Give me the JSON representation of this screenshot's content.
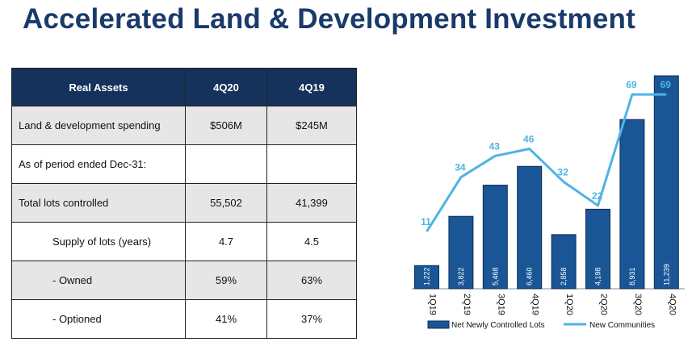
{
  "title": "Accelerated Land & Development Investment",
  "table": {
    "headers": [
      "Real Assets",
      "4Q20",
      "4Q19"
    ],
    "rows": [
      {
        "label": "Land & development spending",
        "q20": "$506M",
        "q19": "$245M",
        "indent": false,
        "shade": true
      },
      {
        "label": "As of period ended Dec-31:",
        "q20": "",
        "q19": "",
        "indent": false,
        "shade": false
      },
      {
        "label": "Total lots controlled",
        "q20": "55,502",
        "q19": "41,399",
        "indent": false,
        "shade": true
      },
      {
        "label": "Supply of lots (years)",
        "q20": "4.7",
        "q19": "4.5",
        "indent": true,
        "shade": false
      },
      {
        "label": "- Owned",
        "q20": "59%",
        "q19": "63%",
        "indent": true,
        "shade": true
      },
      {
        "label": "- Optioned",
        "q20": "41%",
        "q19": "37%",
        "indent": true,
        "shade": false
      }
    ]
  },
  "chart_data": {
    "type": "bar",
    "categories": [
      "1Q19",
      "2Q19",
      "3Q19",
      "4Q19",
      "1Q20",
      "2Q20",
      "3Q20",
      "4Q20"
    ],
    "series": [
      {
        "name": "Net Newly Controlled Lots",
        "kind": "bar",
        "color": "#1a5696",
        "values": [
          1222,
          3822,
          5468,
          6460,
          2858,
          4198,
          8931,
          11239
        ],
        "labels": [
          "1,222",
          "3,822",
          "5,468",
          "6,460",
          "2,858",
          "4,198",
          "8,931",
          "11,239"
        ]
      },
      {
        "name": "New Communities",
        "kind": "line",
        "color": "#4fb3e5",
        "values": [
          11,
          34,
          43,
          46,
          32,
          22,
          69,
          69
        ]
      }
    ],
    "legend_position": "bottom",
    "grid": false
  }
}
